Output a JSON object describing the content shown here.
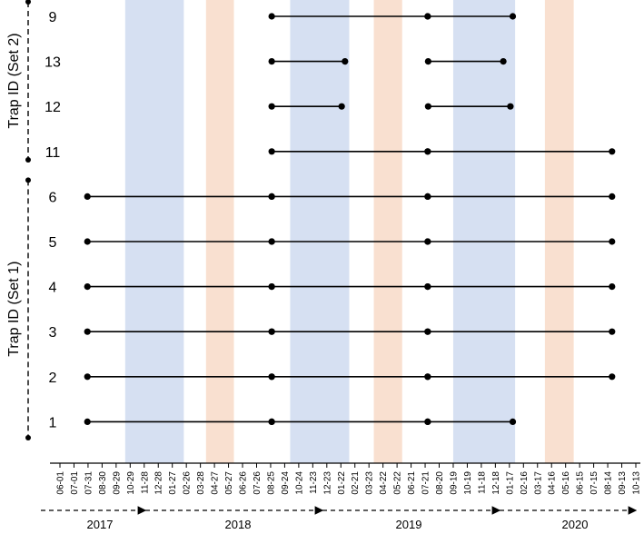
{
  "chart_data": {
    "type": "timeline",
    "colors": {
      "blue_band": "#d6e0f2",
      "orange_band": "#f9e0d0",
      "line": "#000000"
    },
    "rows": [
      "9",
      "13",
      "12",
      "11",
      "6",
      "5",
      "4",
      "3",
      "2",
      "1"
    ],
    "set_labels": [
      {
        "text": "Trap ID (Set 2)",
        "rows": [
          "9",
          "13",
          "12",
          "11"
        ]
      },
      {
        "text": "Trap ID (Set 1)",
        "rows": [
          "6",
          "5",
          "4",
          "3",
          "2",
          "1"
        ]
      }
    ],
    "x_tick_labels": [
      "06-01",
      "07-01",
      "07-31",
      "08-30",
      "09-29",
      "10-29",
      "11-28",
      "12-28",
      "01-27",
      "02-26",
      "03-28",
      "04-27",
      "05-27",
      "06-26",
      "07-26",
      "08-25",
      "09-24",
      "10-24",
      "11-23",
      "12-23",
      "01-22",
      "02-21",
      "03-23",
      "04-22",
      "05-22",
      "06-21",
      "07-21",
      "08-20",
      "09-19",
      "10-19",
      "11-18",
      "12-18",
      "01-17",
      "02-16",
      "03-17",
      "04-16",
      "05-16",
      "06-15",
      "07-15",
      "08-14",
      "09-13",
      "10-13"
    ],
    "years": [
      "2017",
      "2018",
      "2019",
      "2020"
    ],
    "bands": [
      {
        "color": "blue",
        "start": "2017-10-19",
        "end": "2018-02-20"
      },
      {
        "color": "orange",
        "start": "2018-04-08",
        "end": "2018-06-06"
      },
      {
        "color": "blue",
        "start": "2018-10-03",
        "end": "2019-02-05"
      },
      {
        "color": "orange",
        "start": "2019-03-29",
        "end": "2019-05-28"
      },
      {
        "color": "blue",
        "start": "2019-09-13",
        "end": "2020-01-22"
      },
      {
        "color": "orange",
        "start": "2020-03-25",
        "end": "2020-05-25"
      }
    ],
    "series": [
      {
        "trap": "9",
        "segments": [
          [
            "2018-08-25",
            "2019-07-21"
          ],
          [
            "2019-07-21",
            "2020-01-17"
          ]
        ]
      },
      {
        "trap": "13",
        "segments": [
          [
            "2018-08-25",
            "2019-01-27"
          ],
          [
            "2019-07-22",
            "2019-12-28"
          ]
        ]
      },
      {
        "trap": "12",
        "segments": [
          [
            "2018-08-25",
            "2019-01-20"
          ],
          [
            "2019-07-22",
            "2020-01-12"
          ]
        ]
      },
      {
        "trap": "11",
        "segments": [
          [
            "2018-08-25",
            "2019-07-21"
          ],
          [
            "2019-07-21",
            "2020-08-14"
          ]
        ]
      },
      {
        "trap": "6",
        "segments": [
          [
            "2017-07-31",
            "2018-08-25"
          ],
          [
            "2018-08-25",
            "2019-07-21"
          ],
          [
            "2019-07-21",
            "2020-08-14"
          ]
        ]
      },
      {
        "trap": "5",
        "segments": [
          [
            "2017-07-31",
            "2018-08-25"
          ],
          [
            "2018-08-25",
            "2019-07-21"
          ],
          [
            "2019-07-21",
            "2020-08-14"
          ]
        ]
      },
      {
        "trap": "4",
        "segments": [
          [
            "2017-07-31",
            "2018-08-25"
          ],
          [
            "2018-08-25",
            "2019-07-21"
          ],
          [
            "2019-07-21",
            "2020-08-14"
          ]
        ]
      },
      {
        "trap": "3",
        "segments": [
          [
            "2017-07-31",
            "2018-08-25"
          ],
          [
            "2018-08-25",
            "2019-07-21"
          ],
          [
            "2019-07-21",
            "2020-08-14"
          ]
        ]
      },
      {
        "trap": "2",
        "segments": [
          [
            "2017-07-31",
            "2018-08-25"
          ],
          [
            "2018-08-25",
            "2019-07-21"
          ],
          [
            "2019-07-21",
            "2020-08-14"
          ]
        ]
      },
      {
        "trap": "1",
        "segments": [
          [
            "2017-07-31",
            "2018-08-25"
          ],
          [
            "2018-08-25",
            "2019-07-21"
          ],
          [
            "2019-07-21",
            "2020-01-17"
          ]
        ]
      }
    ],
    "x_range": [
      "2017-06-01",
      "2020-10-13"
    ],
    "grid": false,
    "legend": "none"
  }
}
